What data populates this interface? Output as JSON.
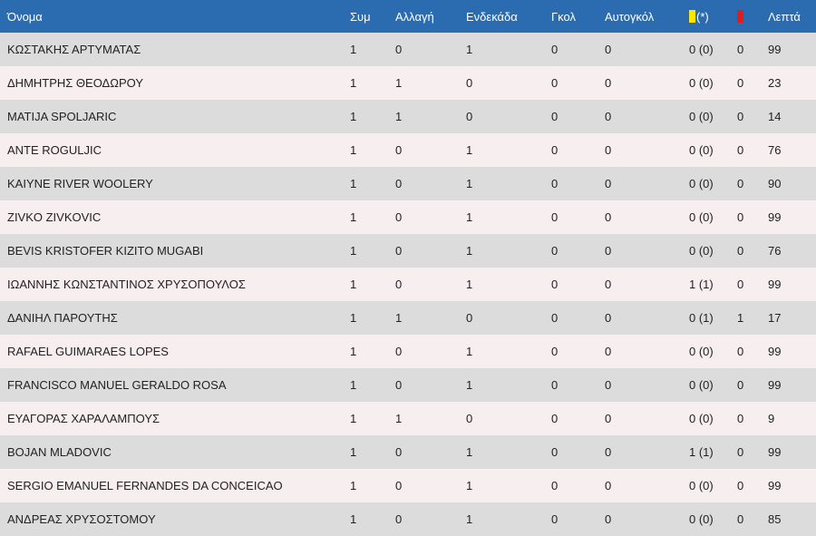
{
  "header": {
    "name": "Όνομα",
    "apps": "Συμ",
    "sub": "Αλλαγή",
    "starter": "Ενδεκάδα",
    "goals": "Γκολ",
    "own_goals": "Αυτογκόλ",
    "yellow_suffix": "(*)",
    "minutes": "Λεπτά",
    "colors": {
      "header_bg": "#2b6cb0",
      "yellow": "#ffe600",
      "red": "#e21b1b"
    }
  },
  "players": [
    {
      "name": "ΚΩΣΤΑΚΗΣ ΑΡΤΥΜΑΤΑΣ",
      "apps": "1",
      "sub": "0",
      "starter": "1",
      "goals": "0",
      "own": "0",
      "yellow": "0 (0)",
      "red": "0",
      "minutes": "99"
    },
    {
      "name": "ΔΗΜΗΤΡΗΣ ΘΕΟΔΩΡΟΥ",
      "apps": "1",
      "sub": "1",
      "starter": "0",
      "goals": "0",
      "own": "0",
      "yellow": "0 (0)",
      "red": "0",
      "minutes": "23"
    },
    {
      "name": "MATIJA SPOLJARIC",
      "apps": "1",
      "sub": "1",
      "starter": "0",
      "goals": "0",
      "own": "0",
      "yellow": "0 (0)",
      "red": "0",
      "minutes": "14"
    },
    {
      "name": "ANTE ROGULJIC",
      "apps": "1",
      "sub": "0",
      "starter": "1",
      "goals": "0",
      "own": "0",
      "yellow": "0 (0)",
      "red": "0",
      "minutes": "76"
    },
    {
      "name": "KAIYNE RIVER WOOLERY",
      "apps": "1",
      "sub": "0",
      "starter": "1",
      "goals": "0",
      "own": "0",
      "yellow": "0 (0)",
      "red": "0",
      "minutes": "90"
    },
    {
      "name": "ZIVKO ZIVKOVIC",
      "apps": "1",
      "sub": "0",
      "starter": "1",
      "goals": "0",
      "own": "0",
      "yellow": "0 (0)",
      "red": "0",
      "minutes": "99"
    },
    {
      "name": "BEVIS KRISTOFER KIZITO MUGABI",
      "apps": "1",
      "sub": "0",
      "starter": "1",
      "goals": "0",
      "own": "0",
      "yellow": "0 (0)",
      "red": "0",
      "minutes": "76"
    },
    {
      "name": "ΙΩΑΝΝΗΣ ΚΩΝΣΤΑΝΤΙΝΟΣ ΧΡΥΣΟΠΟΥΛΟΣ",
      "apps": "1",
      "sub": "0",
      "starter": "1",
      "goals": "0",
      "own": "0",
      "yellow": "1 (1)",
      "red": "0",
      "minutes": "99"
    },
    {
      "name": "ΔΑΝΙΗΛ ΠΑΡΟΥΤΗΣ",
      "apps": "1",
      "sub": "1",
      "starter": "0",
      "goals": "0",
      "own": "0",
      "yellow": "0 (1)",
      "red": "1",
      "minutes": "17"
    },
    {
      "name": "RAFAEL GUIMARAES LOPES",
      "apps": "1",
      "sub": "0",
      "starter": "1",
      "goals": "0",
      "own": "0",
      "yellow": "0 (0)",
      "red": "0",
      "minutes": "99"
    },
    {
      "name": "FRANCISCO MANUEL GERALDO ROSA",
      "apps": "1",
      "sub": "0",
      "starter": "1",
      "goals": "0",
      "own": "0",
      "yellow": "0 (0)",
      "red": "0",
      "minutes": "99"
    },
    {
      "name": "ΕΥΑΓΟΡΑΣ ΧΑΡΑΛΑΜΠΟΥΣ",
      "apps": "1",
      "sub": "1",
      "starter": "0",
      "goals": "0",
      "own": "0",
      "yellow": "0 (0)",
      "red": "0",
      "minutes": "9"
    },
    {
      "name": "BOJAN MLADOVIC",
      "apps": "1",
      "sub": "0",
      "starter": "1",
      "goals": "0",
      "own": "0",
      "yellow": "1 (1)",
      "red": "0",
      "minutes": "99"
    },
    {
      "name": "SERGIO EMANUEL FERNANDES DA CONCEICAO",
      "apps": "1",
      "sub": "0",
      "starter": "1",
      "goals": "0",
      "own": "0",
      "yellow": "0 (0)",
      "red": "0",
      "minutes": "99"
    },
    {
      "name": "ΑΝΔΡΕΑΣ ΧΡΥΣΟΣΤΟΜΟΥ",
      "apps": "1",
      "sub": "0",
      "starter": "1",
      "goals": "0",
      "own": "0",
      "yellow": "0 (0)",
      "red": "0",
      "minutes": "85"
    }
  ]
}
